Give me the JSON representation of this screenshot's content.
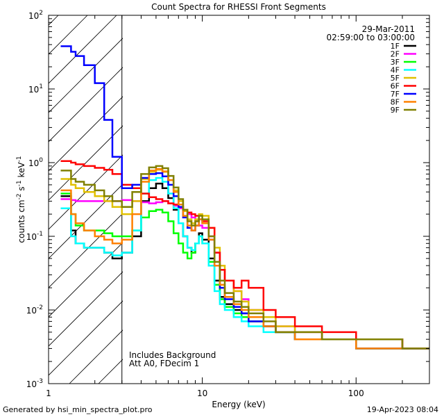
{
  "chart_data": {
    "type": "line",
    "title": "Count Spectra for RHESSI Front Segments",
    "xlabel": "Energy (keV)",
    "ylabel": "counts cm-2 s-1 keV-1",
    "x_scale": "log",
    "y_scale": "log",
    "xlim": [
      1,
      300
    ],
    "ylim": [
      0.001,
      100
    ],
    "x_ticks": [
      {
        "value": 1,
        "label": "1"
      },
      {
        "value": 10,
        "label": "10"
      },
      {
        "value": 100,
        "label": "100"
      }
    ],
    "y_ticks": [
      {
        "value": 100,
        "base": "10",
        "exp": "2"
      },
      {
        "value": 10,
        "base": "10",
        "exp": "1"
      },
      {
        "value": 1,
        "base": "10",
        "exp": "0"
      },
      {
        "value": 0.1,
        "base": "10",
        "exp": "-1"
      },
      {
        "value": 0.01,
        "base": "10",
        "exp": "-2"
      },
      {
        "value": 0.001,
        "base": "10",
        "exp": "-3"
      }
    ],
    "hatched_region_max_energy": 3,
    "date": "29-Mar-2011",
    "time_range": "02:59:00 to 03:00:00",
    "annotations": [
      "Includes Background",
      "Att A0, FDecim 1"
    ],
    "series": [
      {
        "name": "1F",
        "color": "#000000",
        "x": [
          1.2,
          1.3,
          1.4,
          1.5,
          1.7,
          2.0,
          2.3,
          2.6,
          3.0,
          3.5,
          4.0,
          4.5,
          5.0,
          5.5,
          6.0,
          6.5,
          7.0,
          7.5,
          8.0,
          8.5,
          9.0,
          9.5,
          10.0,
          11.0,
          12.0,
          13.0,
          14.0,
          16.0,
          18.0,
          20.0,
          25.0,
          30.0,
          40.0,
          60.0,
          100.0,
          200.0,
          300.0
        ],
        "values": [
          0.35,
          0.35,
          0.12,
          0.08,
          0.07,
          0.07,
          0.06,
          0.05,
          0.06,
          0.1,
          0.3,
          0.45,
          0.52,
          0.45,
          0.33,
          0.23,
          0.15,
          0.1,
          0.07,
          0.06,
          0.08,
          0.11,
          0.09,
          0.05,
          0.025,
          0.015,
          0.012,
          0.01,
          0.009,
          0.007,
          0.006,
          0.005,
          0.004,
          0.004,
          0.003,
          0.003,
          0.003
        ]
      },
      {
        "name": "2F",
        "color": "#ff00ff",
        "x": [
          1.2,
          1.3,
          1.4,
          1.5,
          1.7,
          2.0,
          2.3,
          2.6,
          3.0,
          3.5,
          4.0,
          4.5,
          5.0,
          5.5,
          6.0,
          6.5,
          7.0,
          7.5,
          8.0,
          8.5,
          9.0,
          9.5,
          10.0,
          11.0,
          12.0,
          13.0,
          14.0,
          16.0,
          18.0,
          20.0,
          25.0,
          30.0,
          40.0,
          60.0,
          100.0,
          200.0,
          300.0
        ],
        "values": [
          0.32,
          0.32,
          0.31,
          0.3,
          0.3,
          0.3,
          0.3,
          0.3,
          0.31,
          0.3,
          0.29,
          0.28,
          0.29,
          0.3,
          0.28,
          0.26,
          0.24,
          0.22,
          0.2,
          0.18,
          0.16,
          0.14,
          0.13,
          0.1,
          0.06,
          0.035,
          0.025,
          0.018,
          0.014,
          0.01,
          0.008,
          0.006,
          0.005,
          0.004,
          0.004,
          0.003,
          0.003
        ]
      },
      {
        "name": "3F",
        "color": "#00ff00",
        "x": [
          1.2,
          1.3,
          1.4,
          1.5,
          1.7,
          2.0,
          2.3,
          2.6,
          3.0,
          3.5,
          4.0,
          4.5,
          5.0,
          5.5,
          6.0,
          6.5,
          7.0,
          7.5,
          8.0,
          8.5,
          9.0,
          9.5,
          10.0,
          11.0,
          12.0,
          13.0,
          14.0,
          16.0,
          18.0,
          20.0,
          25.0,
          30.0,
          40.0,
          60.0,
          100.0,
          200.0,
          300.0
        ],
        "values": [
          0.38,
          0.38,
          0.2,
          0.14,
          0.12,
          0.12,
          0.11,
          0.1,
          0.1,
          0.12,
          0.18,
          0.22,
          0.23,
          0.21,
          0.16,
          0.11,
          0.08,
          0.06,
          0.05,
          0.06,
          0.08,
          0.1,
          0.08,
          0.045,
          0.022,
          0.014,
          0.011,
          0.009,
          0.008,
          0.007,
          0.006,
          0.005,
          0.004,
          0.004,
          0.003,
          0.003,
          0.003
        ]
      },
      {
        "name": "4F",
        "color": "#00ffff",
        "x": [
          1.2,
          1.3,
          1.4,
          1.5,
          1.7,
          2.0,
          2.3,
          2.6,
          3.0,
          3.5,
          4.0,
          4.5,
          5.0,
          5.5,
          6.0,
          6.5,
          7.0,
          7.5,
          8.0,
          8.5,
          9.0,
          9.5,
          10.0,
          11.0,
          12.0,
          13.0,
          14.0,
          16.0,
          18.0,
          20.0,
          25.0,
          30.0,
          40.0,
          60.0,
          100.0,
          200.0,
          300.0
        ],
        "values": [
          0.24,
          0.24,
          0.1,
          0.08,
          0.07,
          0.07,
          0.06,
          0.055,
          0.06,
          0.12,
          0.38,
          0.58,
          0.62,
          0.55,
          0.38,
          0.24,
          0.15,
          0.1,
          0.07,
          0.065,
          0.08,
          0.1,
          0.08,
          0.04,
          0.018,
          0.012,
          0.01,
          0.008,
          0.007,
          0.006,
          0.005,
          0.005,
          0.004,
          0.004,
          0.003,
          0.003,
          0.003
        ]
      },
      {
        "name": "5F",
        "color": "#e0c000",
        "x": [
          1.2,
          1.3,
          1.4,
          1.5,
          1.7,
          2.0,
          2.3,
          2.6,
          3.0,
          3.5,
          4.0,
          4.5,
          5.0,
          5.5,
          6.0,
          6.5,
          7.0,
          7.5,
          8.0,
          8.5,
          9.0,
          9.5,
          10.0,
          11.0,
          12.0,
          13.0,
          14.0,
          16.0,
          18.0,
          20.0,
          25.0,
          30.0,
          40.0,
          60.0,
          100.0,
          200.0,
          300.0
        ],
        "values": [
          0.6,
          0.6,
          0.5,
          0.45,
          0.4,
          0.35,
          0.3,
          0.25,
          0.2,
          0.3,
          0.6,
          0.75,
          0.8,
          0.75,
          0.58,
          0.42,
          0.3,
          0.22,
          0.17,
          0.15,
          0.17,
          0.2,
          0.19,
          0.13,
          0.07,
          0.04,
          0.025,
          0.018,
          0.013,
          0.01,
          0.008,
          0.006,
          0.005,
          0.004,
          0.004,
          0.003,
          0.003
        ]
      },
      {
        "name": "6F",
        "color": "#ff0000",
        "x": [
          1.2,
          1.3,
          1.4,
          1.5,
          1.7,
          2.0,
          2.3,
          2.6,
          3.0,
          3.5,
          4.0,
          4.5,
          5.0,
          5.5,
          6.0,
          6.5,
          7.0,
          7.5,
          8.0,
          8.5,
          9.0,
          9.5,
          10.0,
          11.0,
          12.0,
          13.0,
          14.0,
          16.0,
          18.0,
          20.0,
          25.0,
          30.0,
          40.0,
          60.0,
          100.0,
          200.0,
          300.0
        ],
        "values": [
          1.05,
          1.05,
          1.0,
          0.95,
          0.9,
          0.85,
          0.8,
          0.7,
          0.5,
          0.45,
          0.38,
          0.34,
          0.32,
          0.3,
          0.28,
          0.27,
          0.25,
          0.23,
          0.21,
          0.2,
          0.19,
          0.17,
          0.16,
          0.13,
          0.06,
          0.035,
          0.025,
          0.02,
          0.025,
          0.02,
          0.01,
          0.008,
          0.006,
          0.005,
          0.004,
          0.003,
          0.003
        ]
      },
      {
        "name": "7F",
        "color": "#0000ff",
        "x": [
          1.2,
          1.3,
          1.4,
          1.5,
          1.7,
          2.0,
          2.3,
          2.6,
          3.0,
          3.5,
          4.0,
          4.5,
          5.0,
          5.5,
          6.0,
          6.5,
          7.0,
          7.5,
          8.0,
          8.5,
          9.0,
          9.5,
          10.0,
          11.0,
          12.0,
          13.0,
          14.0,
          16.0,
          18.0,
          20.0,
          25.0,
          30.0,
          40.0,
          60.0,
          100.0,
          200.0,
          300.0
        ],
        "values": [
          38.0,
          38.0,
          32.0,
          28.0,
          21.0,
          12.0,
          3.8,
          1.2,
          0.45,
          0.5,
          0.62,
          0.7,
          0.72,
          0.65,
          0.5,
          0.35,
          0.25,
          0.18,
          0.13,
          0.12,
          0.14,
          0.17,
          0.15,
          0.09,
          0.04,
          0.02,
          0.014,
          0.011,
          0.009,
          0.007,
          0.006,
          0.005,
          0.004,
          0.004,
          0.003,
          0.003,
          0.003
        ]
      },
      {
        "name": "8F",
        "color": "#ff8000",
        "x": [
          1.2,
          1.3,
          1.4,
          1.5,
          1.7,
          2.0,
          2.3,
          2.6,
          3.0,
          3.5,
          4.0,
          4.5,
          5.0,
          5.5,
          6.0,
          6.5,
          7.0,
          7.5,
          8.0,
          8.5,
          9.0,
          9.5,
          10.0,
          11.0,
          12.0,
          13.0,
          14.0,
          16.0,
          18.0,
          20.0,
          25.0,
          30.0,
          40.0,
          60.0,
          100.0,
          200.0,
          300.0
        ],
        "values": [
          0.42,
          0.42,
          0.2,
          0.15,
          0.12,
          0.1,
          0.09,
          0.08,
          0.09,
          0.2,
          0.55,
          0.78,
          0.82,
          0.76,
          0.58,
          0.4,
          0.27,
          0.19,
          0.14,
          0.12,
          0.14,
          0.17,
          0.15,
          0.09,
          0.04,
          0.022,
          0.015,
          0.012,
          0.01,
          0.008,
          0.006,
          0.005,
          0.004,
          0.004,
          0.003,
          0.003,
          0.003
        ]
      },
      {
        "name": "9F",
        "color": "#808000",
        "x": [
          1.2,
          1.3,
          1.4,
          1.5,
          1.7,
          2.0,
          2.3,
          2.6,
          3.0,
          3.5,
          4.0,
          4.5,
          5.0,
          5.5,
          6.0,
          6.5,
          7.0,
          7.5,
          8.0,
          8.5,
          9.0,
          9.5,
          10.0,
          11.0,
          12.0,
          13.0,
          14.0,
          16.0,
          18.0,
          20.0,
          25.0,
          30.0,
          40.0,
          60.0,
          100.0,
          200.0,
          300.0
        ],
        "values": [
          0.78,
          0.78,
          0.6,
          0.55,
          0.5,
          0.42,
          0.35,
          0.3,
          0.25,
          0.4,
          0.7,
          0.86,
          0.9,
          0.84,
          0.66,
          0.46,
          0.32,
          0.23,
          0.16,
          0.14,
          0.16,
          0.19,
          0.17,
          0.1,
          0.045,
          0.025,
          0.017,
          0.013,
          0.011,
          0.009,
          0.007,
          0.005,
          0.005,
          0.004,
          0.004,
          0.003,
          0.003
        ]
      }
    ]
  },
  "footer": {
    "left": "Generated by hsi_min_spectra_plot.pro",
    "right": "19-Apr-2023 08:04"
  }
}
